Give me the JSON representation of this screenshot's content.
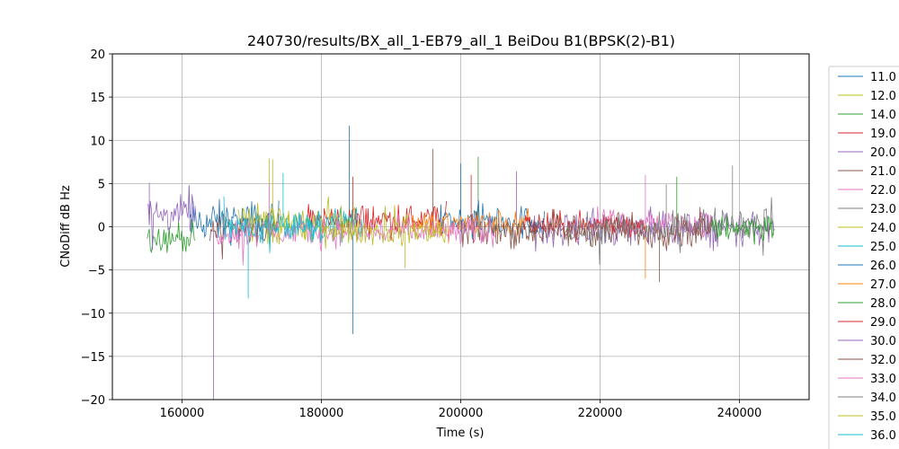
{
  "chart_data": {
    "type": "line",
    "title": "240730/results/BX_all_1-EB79_all_1 BeiDou B1(BPSK(2)-B1)",
    "xlabel": "Time (s)",
    "ylabel": "CNoDiff dB Hz",
    "xlim": [
      150000,
      250000
    ],
    "ylim": [
      -20,
      20
    ],
    "xticks": [
      160000,
      180000,
      200000,
      220000,
      240000
    ],
    "xtick_labels": [
      "160000",
      "180000",
      "200000",
      "220000",
      "240000"
    ],
    "yticks": [
      -20,
      -15,
      -10,
      -5,
      0,
      5,
      10,
      15,
      20
    ],
    "ytick_labels": [
      "−20",
      "−15",
      "−10",
      "−5",
      "0",
      "5",
      "10",
      "15",
      "20"
    ],
    "grid": true,
    "legend_placement": "right-outside",
    "series": [
      {
        "name": "11.0",
        "color": "#1f77b4",
        "x_range": [
          161000,
          174000
        ],
        "mean": 0.5,
        "spread": 2.2,
        "spikes": [
          [
            184000,
            11.7
          ],
          [
            184500,
            -12.4
          ]
        ]
      },
      {
        "name": "12.0",
        "color": "#bcbd22",
        "x_range": [
          172000,
          186000
        ],
        "mean": 0.0,
        "spread": 1.8,
        "spikes": [
          [
            172500,
            7.9
          ]
        ]
      },
      {
        "name": "14.0",
        "color": "#2ca02c",
        "x_range": [
          155000,
          162000
        ],
        "mean": -1.2,
        "spread": 1.5,
        "spikes": [
          [
            202500,
            8.1
          ]
        ]
      },
      {
        "name": "19.0",
        "color": "#d62728",
        "x_range": [
          178000,
          198000
        ],
        "mean": 0.8,
        "spread": 1.6,
        "spikes": [
          [
            184500,
            5.8
          ]
        ]
      },
      {
        "name": "20.0",
        "color": "#9467bd",
        "x_range": [
          210000,
          245000
        ],
        "mean": -0.3,
        "spread": 1.8,
        "spikes": [
          [
            164500,
            -20.0
          ],
          [
            208000,
            6.4
          ]
        ]
      },
      {
        "name": "21.0",
        "color": "#8c564b",
        "x_range": [
          164000,
          174000
        ],
        "mean": -0.5,
        "spread": 1.7,
        "spikes": [
          [
            196000,
            9.0
          ]
        ]
      },
      {
        "name": "22.0",
        "color": "#e377c2",
        "x_range": [
          218000,
          236000
        ],
        "mean": 0.3,
        "spread": 1.5,
        "spikes": [
          [
            226500,
            6.0
          ]
        ]
      },
      {
        "name": "23.0",
        "color": "#7f7f7f",
        "x_range": [
          232000,
          245000
        ],
        "mean": 0.2,
        "spread": 1.7,
        "spikes": [
          [
            239000,
            7.1
          ]
        ]
      },
      {
        "name": "24.0",
        "color": "#bcbd22",
        "x_range": [
          168000,
          178000
        ],
        "mean": 0.8,
        "spread": 1.7,
        "spikes": [
          [
            173000,
            7.8
          ]
        ]
      },
      {
        "name": "25.0",
        "color": "#17becf",
        "x_range": [
          176000,
          186000
        ],
        "mean": 0.3,
        "spread": 1.8,
        "spikes": [
          [
            174500,
            6.2
          ]
        ]
      },
      {
        "name": "26.0",
        "color": "#1f77b4",
        "x_range": [
          197000,
          212000
        ],
        "mean": 0.6,
        "spread": 1.8,
        "spikes": [
          [
            200000,
            7.3
          ]
        ]
      },
      {
        "name": "27.0",
        "color": "#ff7f0e",
        "x_range": [
          193000,
          210000
        ],
        "mean": 0.3,
        "spread": 1.5,
        "spikes": [
          [
            226500,
            -6.0
          ]
        ]
      },
      {
        "name": "28.0",
        "color": "#2ca02c",
        "x_range": [
          236000,
          245000
        ],
        "mean": 0.0,
        "spread": 1.6,
        "spikes": [
          [
            231000,
            5.8
          ]
        ]
      },
      {
        "name": "29.0",
        "color": "#d62728",
        "x_range": [
          209000,
          226000
        ],
        "mean": 0.2,
        "spread": 1.4,
        "spikes": [
          [
            201500,
            6.0
          ]
        ]
      },
      {
        "name": "30.0",
        "color": "#9467bd",
        "x_range": [
          155000,
          162000
        ],
        "mean": 1.5,
        "spread": 1.7,
        "spikes": [
          [
            155300,
            5.1
          ]
        ]
      },
      {
        "name": "32.0",
        "color": "#8c564b",
        "x_range": [
          200000,
          236000
        ],
        "mean": -0.4,
        "spread": 1.8,
        "spikes": [
          [
            228500,
            -6.4
          ]
        ]
      },
      {
        "name": "33.0",
        "color": "#e377c2",
        "x_range": [
          165000,
          205000
        ],
        "mean": -0.6,
        "spread": 1.5,
        "spikes": [
          [
            172500,
            5.0
          ]
        ]
      },
      {
        "name": "34.0",
        "color": "#7f7f7f",
        "x_range": [
          215000,
          232000
        ],
        "mean": -0.4,
        "spread": 1.6,
        "spikes": [
          [
            229500,
            4.9
          ]
        ]
      },
      {
        "name": "35.0",
        "color": "#bcbd22",
        "x_range": [
          180000,
          198000
        ],
        "mean": -0.5,
        "spread": 1.4,
        "spikes": [
          [
            192000,
            -4.8
          ]
        ]
      },
      {
        "name": "36.0",
        "color": "#17becf",
        "x_range": [
          166000,
          180000
        ],
        "mean": 0.0,
        "spread": 1.6,
        "spikes": [
          [
            169500,
            -8.3
          ]
        ]
      }
    ]
  }
}
